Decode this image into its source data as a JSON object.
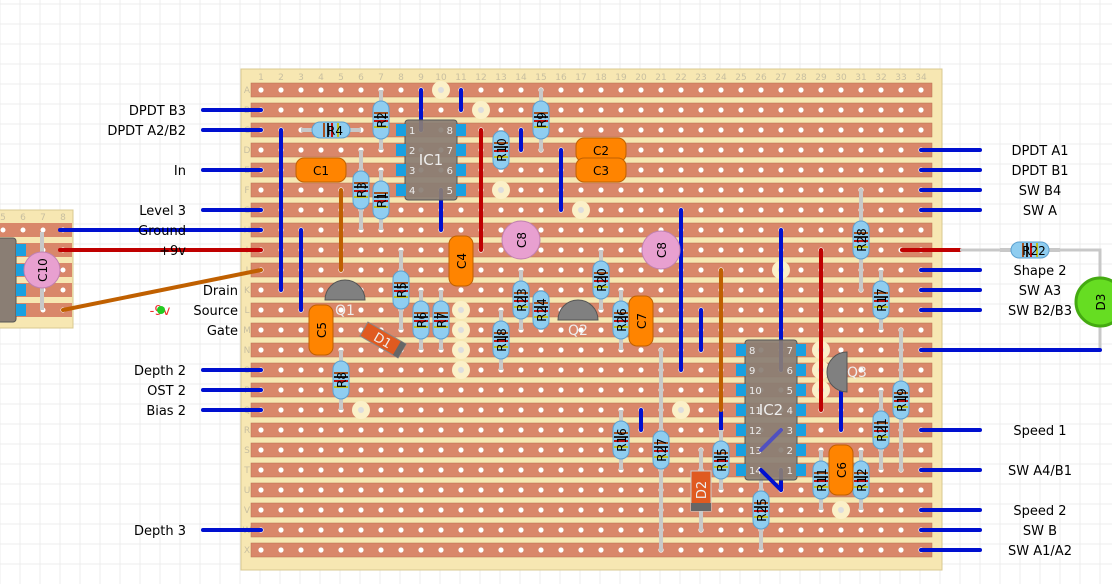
{
  "board": {
    "columns": 34,
    "rows": [
      "A",
      "B",
      "C",
      "D",
      "E",
      "F",
      "G",
      "H",
      "I",
      "J",
      "K",
      "L",
      "M",
      "N",
      "O",
      "P",
      "Q",
      "R",
      "S",
      "T",
      "U",
      "V",
      "W",
      "X"
    ],
    "strip_color": "#d9876a",
    "board_color": "#f7e7b2"
  },
  "side_board": {
    "columns": [
      "5",
      "6",
      "7",
      "8"
    ]
  },
  "left_labels": [
    {
      "text": "DPDT B3",
      "row": "B"
    },
    {
      "text": "DPDT A2/B2",
      "row": "C"
    },
    {
      "text": "In",
      "row": "E"
    },
    {
      "text": "Level 3",
      "row": "G"
    },
    {
      "text": "Ground",
      "row": "H"
    },
    {
      "text": "+9v",
      "row": "I"
    },
    {
      "text": "Drain",
      "row": "K"
    },
    {
      "text": "Source",
      "row": "L"
    },
    {
      "text": "Gate",
      "row": "M"
    },
    {
      "text": "Depth 2",
      "row": "O"
    },
    {
      "text": "OST 2",
      "row": "P"
    },
    {
      "text": "Bias 2",
      "row": "Q"
    },
    {
      "text": "Depth 3",
      "row": "W"
    }
  ],
  "minus9v_label": "-9v",
  "right_labels": [
    {
      "text": "DPDT A1",
      "row": "D"
    },
    {
      "text": "DPDT B1",
      "row": "E"
    },
    {
      "text": "SW B4",
      "row": "F"
    },
    {
      "text": "SW A",
      "row": "G"
    },
    {
      "text": "Shape 2",
      "row": "J"
    },
    {
      "text": "SW A3",
      "row": "K"
    },
    {
      "text": "SW B2/B3",
      "row": "L"
    },
    {
      "text": "Speed 1",
      "row": "R"
    },
    {
      "text": "SW A4/B1",
      "row": "T"
    },
    {
      "text": "Speed 2",
      "row": "V"
    },
    {
      "text": "SW B",
      "row": "W"
    },
    {
      "text": "SW A1/A2",
      "row": "X"
    }
  ],
  "ics": [
    {
      "name": "IC1",
      "left_pins": [
        "1",
        "2",
        "3",
        "4"
      ],
      "right_pins": [
        "8",
        "7",
        "6",
        "5"
      ]
    },
    {
      "name": "IC2",
      "left_pins": [
        "8",
        "9",
        "10",
        "11",
        "12",
        "13",
        "14"
      ],
      "right_pins": [
        "7",
        "6",
        "5",
        "4",
        "3",
        "2",
        "1"
      ]
    }
  ],
  "resistors": [
    "R1",
    "R2",
    "R3",
    "R4",
    "R5",
    "R6",
    "R7",
    "R8",
    "R9",
    "R10",
    "R11",
    "R12",
    "R15",
    "R16",
    "R17",
    "R18",
    "R19",
    "R20",
    "R21",
    "R22",
    "R23",
    "R24",
    "R25",
    "R26",
    "R27",
    "R28"
  ],
  "capacitors": [
    "C1",
    "C2",
    "C3",
    "C4",
    "C5",
    "C6",
    "C7",
    "C8",
    "C8",
    "C10"
  ],
  "transistors": [
    "Q1",
    "Q2",
    "Q3"
  ],
  "diodes": [
    "D1",
    "D2"
  ],
  "led": "D3",
  "colors": {
    "jumper_blue": "#0010d0",
    "power_red": "#c00000",
    "wire_orange": "#c06000",
    "link_gray": "#c8c8c8",
    "cap_orange": "#ff8400",
    "electrolytic_pink": "#e8a0d0",
    "led_green": "#66dd22",
    "transistor_gray": "#808080"
  }
}
